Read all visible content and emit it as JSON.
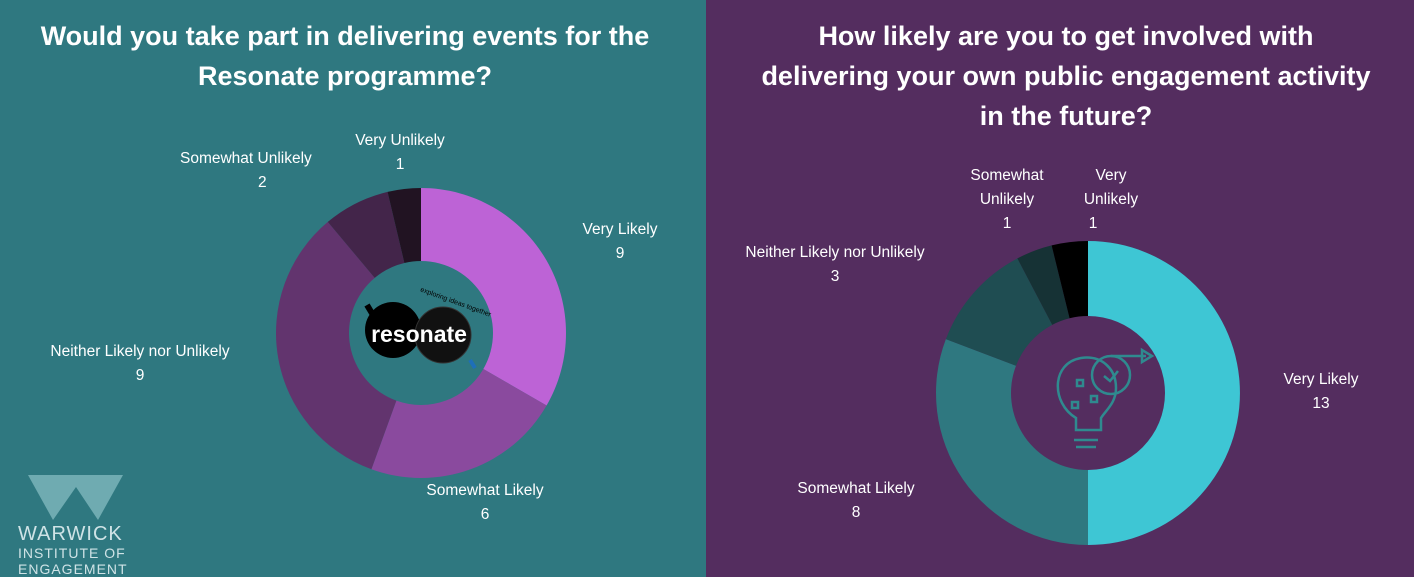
{
  "chart_data": [
    {
      "type": "pie",
      "donut": true,
      "title": "Would you take part in delivering events for the Resonate programme?",
      "categories": [
        "Very Likely",
        "Somewhat Likely",
        "Neither Likely nor Unlikely",
        "Somewhat Unlikely",
        "Very Unlikely"
      ],
      "values": [
        9,
        6,
        9,
        2,
        1
      ],
      "colors": [
        "#bd63d6",
        "#8a4a9e",
        "#62346e",
        "#43254a",
        "#211322"
      ],
      "center_logo": "resonate exploring ideas together"
    },
    {
      "type": "pie",
      "donut": true,
      "title": "How likely are you to get involved with delivering your own public engagement activity in the future?",
      "categories": [
        "Very Likely",
        "Somewhat Likely",
        "Neither Likely nor Unlikely",
        "Somewhat Unlikely",
        "Very Unlikely"
      ],
      "values": [
        13,
        8,
        3,
        1,
        1
      ],
      "colors": [
        "#3ec6d4",
        "#2f7880",
        "#1f4d52",
        "#163235",
        "#000000"
      ],
      "center_icon": "lightbulb-clock-icon"
    }
  ],
  "footer_logo": {
    "line1": "WARWICK",
    "line2": "INSTITUTE OF",
    "line3": "ENGAGEMENT"
  }
}
